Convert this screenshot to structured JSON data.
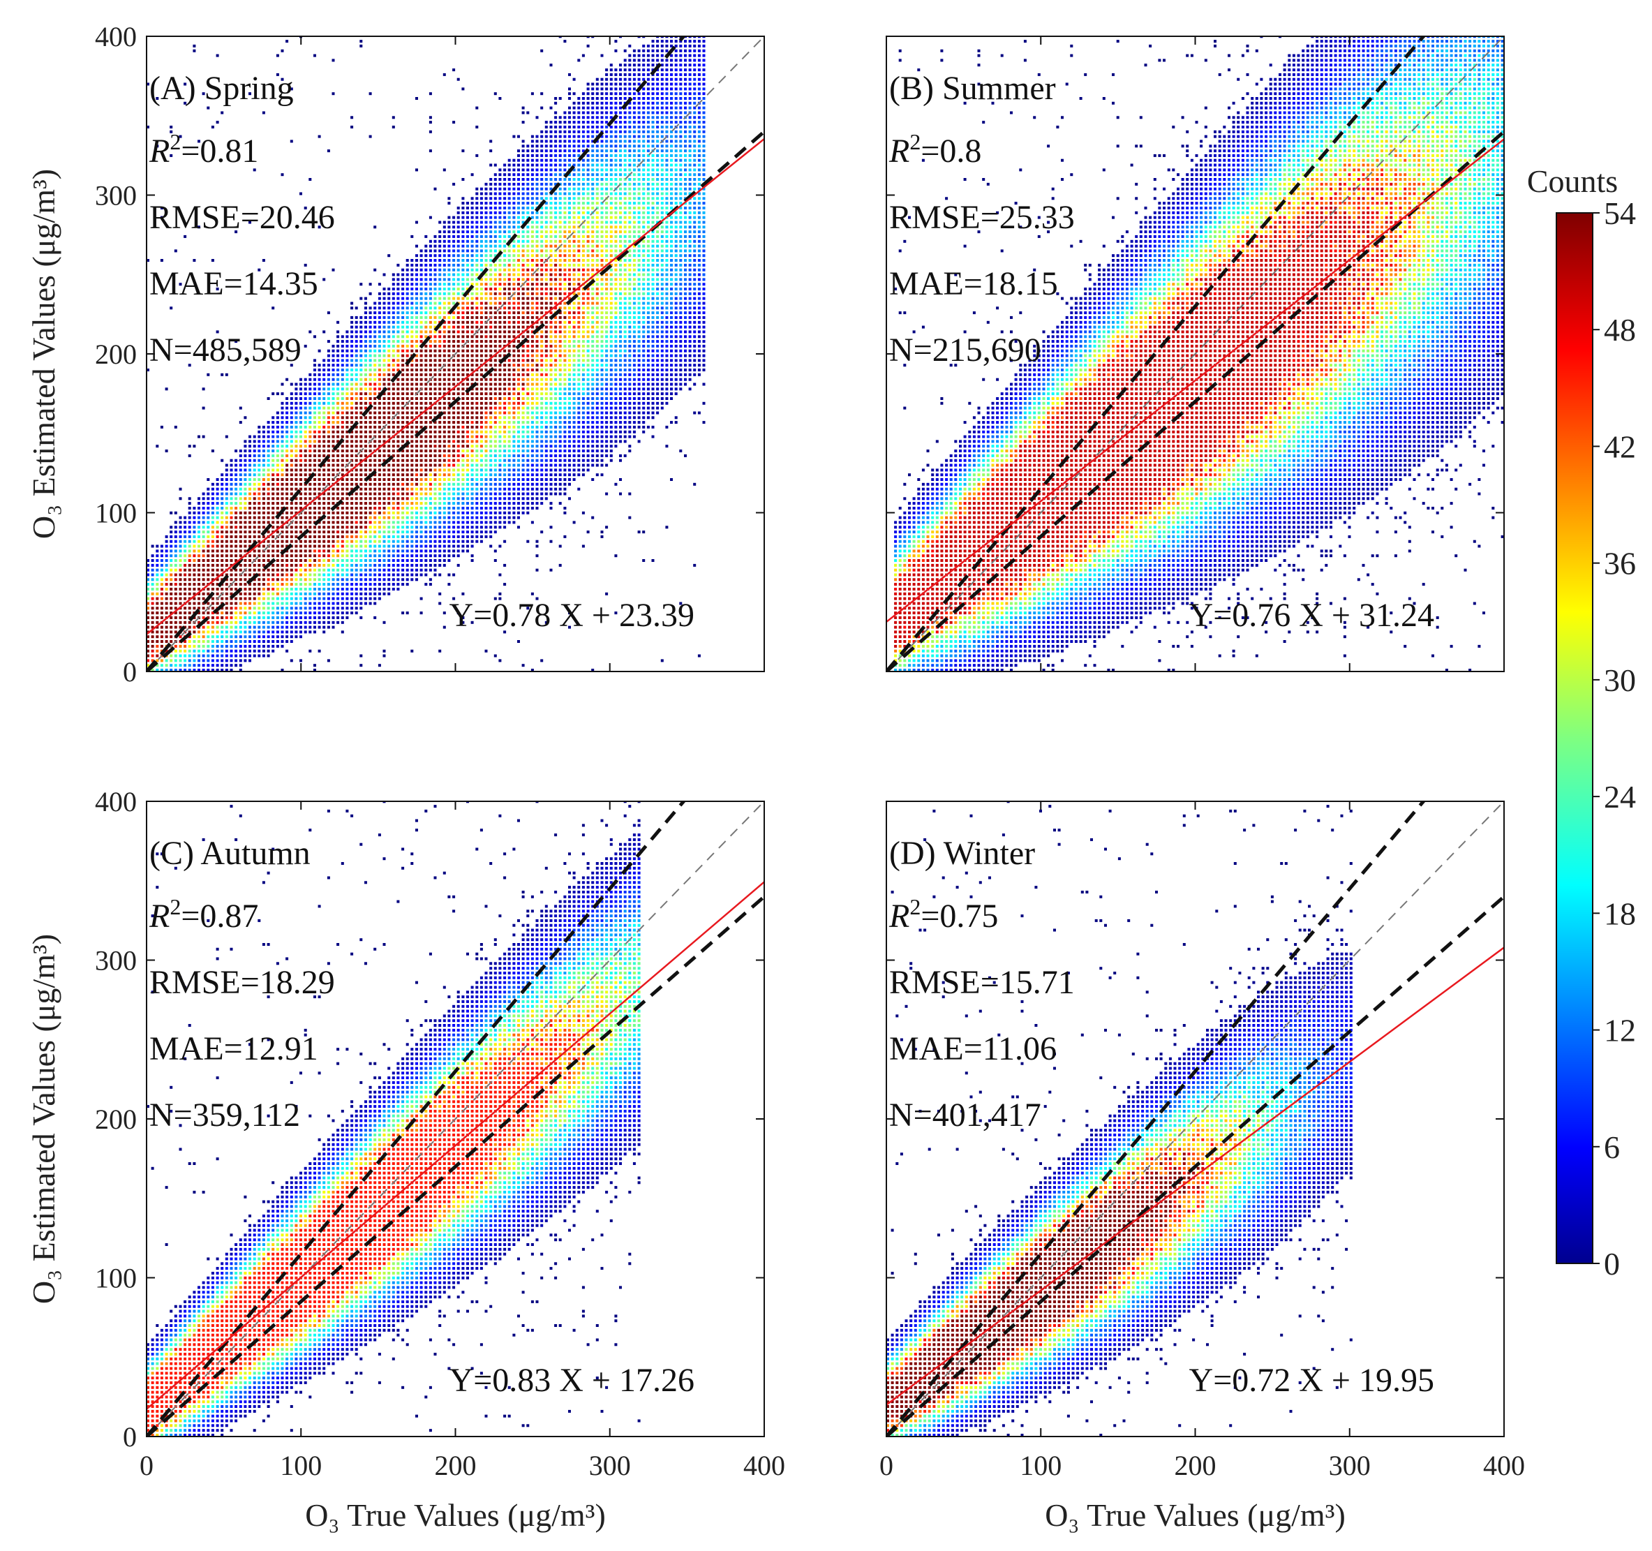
{
  "figure": {
    "x_axis_title": "O₃ True Values (μg/m³)",
    "y_axis_title": "O₃ Estimated Values (μg/m³)"
  },
  "colorbar": {
    "title": "Counts",
    "ticks": [
      "54",
      "48",
      "42",
      "36",
      "30",
      "24",
      "18",
      "12",
      "6",
      "0"
    ],
    "min": 0,
    "max": 54,
    "colormap": "jet"
  },
  "chart_data": [
    {
      "type": "heatmap",
      "title": "(A) Spring",
      "r2_label": "R",
      "r2_value": "=0.81",
      "rmse": "RMSE=20.46",
      "mae": "MAE=14.35",
      "n": "N=485,589",
      "equation": "Y=0.78 X + 23.39",
      "slope": 0.78,
      "intercept": 23.39,
      "xlim": [
        0,
        400
      ],
      "ylim": [
        0,
        400
      ],
      "x_ticks": [
        "0",
        "100",
        "200",
        "300",
        "400"
      ],
      "y_ticks": [
        "0",
        "100",
        "200",
        "300",
        "400"
      ],
      "density": {
        "center_x": 110,
        "spread_along": 70,
        "spread_across": 18,
        "peak": 54,
        "x_range": [
          0,
          360
        ]
      }
    },
    {
      "type": "heatmap",
      "title": "(B) Summer",
      "r2_label": "R",
      "r2_value": "=0.8",
      "rmse": "RMSE=25.33",
      "mae": "MAE=18.15",
      "n": "N=215,690",
      "equation": "Y=0.76 X + 31.24",
      "slope": 0.76,
      "intercept": 31.24,
      "xlim": [
        0,
        400
      ],
      "ylim": [
        0,
        400
      ],
      "x_ticks": [
        "0",
        "100",
        "200",
        "300",
        "400"
      ],
      "y_ticks": [
        "0",
        "100",
        "200",
        "300",
        "400"
      ],
      "density": {
        "center_x": 135,
        "spread_along": 80,
        "spread_across": 22,
        "peak": 50,
        "x_range": [
          5,
          400
        ]
      }
    },
    {
      "type": "heatmap",
      "title": "(C) Autumn",
      "r2_label": "R",
      "r2_value": "=0.87",
      "rmse": "RMSE=18.29",
      "mae": "MAE=12.91",
      "n": "N=359,112",
      "equation": "Y=0.83 X + 17.26",
      "slope": 0.83,
      "intercept": 17.26,
      "xlim": [
        0,
        400
      ],
      "ylim": [
        0,
        400
      ],
      "x_ticks": [
        "0",
        "100",
        "200",
        "300",
        "400"
      ],
      "y_ticks": [
        "0",
        "100",
        "200",
        "300",
        "400"
      ],
      "density": {
        "center_x": 90,
        "spread_along": 75,
        "spread_across": 15,
        "peak": 46,
        "x_range": [
          0,
          320
        ]
      }
    },
    {
      "type": "heatmap",
      "title": "(D) Winter",
      "r2_label": "R",
      "r2_value": "=0.75",
      "rmse": "RMSE=15.71",
      "mae": "MAE=11.06",
      "n": "N=401,417",
      "equation": "Y=0.72 X + 19.95",
      "slope": 0.72,
      "intercept": 19.95,
      "xlim": [
        0,
        400
      ],
      "ylim": [
        0,
        400
      ],
      "x_ticks": [
        "0",
        "100",
        "200",
        "300",
        "400"
      ],
      "y_ticks": [
        "0",
        "100",
        "200",
        "300",
        "400"
      ],
      "density": {
        "center_x": 75,
        "spread_along": 55,
        "spread_across": 15,
        "peak": 54,
        "x_range": [
          0,
          300
        ]
      }
    }
  ]
}
